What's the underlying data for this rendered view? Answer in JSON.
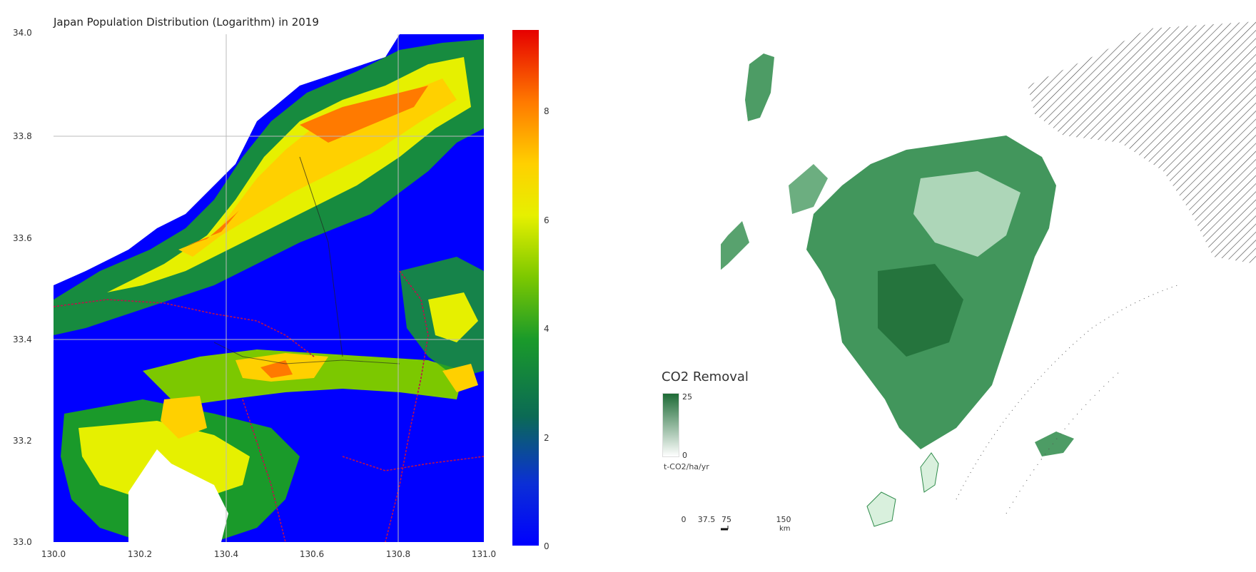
{
  "left_map": {
    "title": "Japan Population Distribution (Logarithm) in 2019",
    "y_ticks": [
      "33.8",
      "33.6",
      "33.4",
      "33.2",
      "33.0"
    ],
    "y_top_partial": "34.0",
    "x_ticks": [
      "130.0",
      "130.2",
      "130.4",
      "130.6",
      "130.8",
      "131.0"
    ],
    "colorbar_ticks": [
      "8",
      "6",
      "4",
      "2",
      "0"
    ],
    "colorbar_colors": [
      "#e60000",
      "#ff7a00",
      "#ffd000",
      "#e6f000",
      "#7cc800",
      "#1a9a2a",
      "#0b6a55",
      "#0b2fd6",
      "#0000ff"
    ],
    "background_color": "#0000ff"
  },
  "right_map": {
    "legend": {
      "title": "CO2 Removal",
      "max": "25",
      "min": "0",
      "unit": "t-CO2/ha/yr",
      "color_high": "#1e6b36",
      "color_low": "#ffffff"
    },
    "scale_bar": {
      "labels": [
        "0",
        "37.5",
        "75",
        "150"
      ],
      "unit": "km"
    },
    "land_color": "#2e8b4a",
    "hatch_color": "#444444"
  }
}
